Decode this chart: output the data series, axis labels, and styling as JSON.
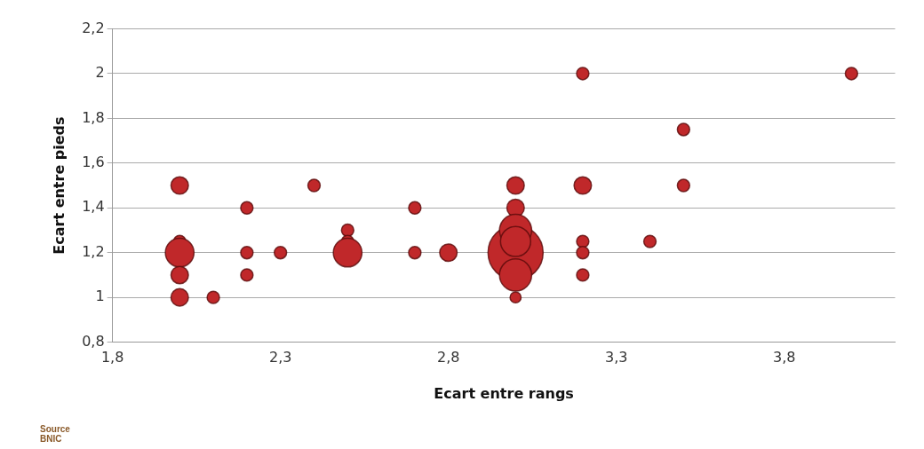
{
  "chart_data": {
    "type": "bubble",
    "xlabel": "Ecart entre rangs",
    "ylabel": "Ecart entre pieds",
    "annotations": [
      "Source\nBNIC"
    ],
    "series": [
      {
        "color": "#c0282a",
        "x": [
          3.0,
          2.0,
          2.0,
          2.0,
          2.0,
          2.0,
          2.1,
          2.2,
          2.2,
          2.2,
          2.3,
          2.4,
          2.5,
          2.5,
          2.5,
          2.7,
          2.7,
          2.8,
          3.0,
          3.0,
          3.0,
          3.0,
          3.0,
          3.0,
          3.2,
          3.2,
          3.2,
          3.2,
          3.2,
          3.4,
          3.5,
          3.5,
          4.0
        ],
        "values": [
          1.2,
          1.5,
          1.25,
          1.2,
          1.1,
          1.0,
          1.0,
          1.4,
          1.2,
          1.1,
          1.2,
          1.5,
          1.3,
          1.25,
          1.2,
          1.4,
          1.2,
          1.2,
          1.5,
          1.4,
          1.3,
          1.25,
          1.1,
          1.0,
          2.0,
          1.5,
          1.25,
          1.2,
          1.1,
          1.25,
          1.75,
          1.5,
          2.0
        ],
        "sizes": [
          1,
          0.1,
          0.05,
          0.27,
          0.1,
          0.1,
          0.05,
          0.05,
          0.05,
          0.05,
          0.05,
          0.05,
          0.05,
          0.05,
          0.27,
          0.05,
          0.05,
          0.1,
          0.1,
          0.1,
          0.34,
          0.3,
          0.34,
          0.04,
          0.05,
          0.1,
          0.05,
          0.05,
          0.05,
          0.05,
          0.05,
          0.05,
          0.05
        ]
      }
    ],
    "xlim": [
      1.8,
      4.13
    ],
    "xticks": [
      {
        "value": 1.8,
        "label": "1,8"
      },
      {
        "value": 2.3,
        "label": "2,3"
      },
      {
        "value": 2.8,
        "label": "2,8"
      },
      {
        "value": 3.3,
        "label": "3,3"
      },
      {
        "value": 3.8,
        "label": "3,8"
      }
    ],
    "ylim": [
      0.8,
      2.2
    ],
    "yticks": [
      {
        "value": 0.8,
        "label": "0,8"
      },
      {
        "value": 1,
        "label": "1"
      },
      {
        "value": 1.2,
        "label": "1,2"
      },
      {
        "value": 1.4,
        "label": "1,4"
      },
      {
        "value": 1.6,
        "label": "1,6"
      },
      {
        "value": 1.8,
        "label": "1,8"
      },
      {
        "value": 2,
        "label": "2"
      },
      {
        "value": 2.2,
        "label": "2,2"
      }
    ],
    "grid": "y",
    "legend": false
  }
}
